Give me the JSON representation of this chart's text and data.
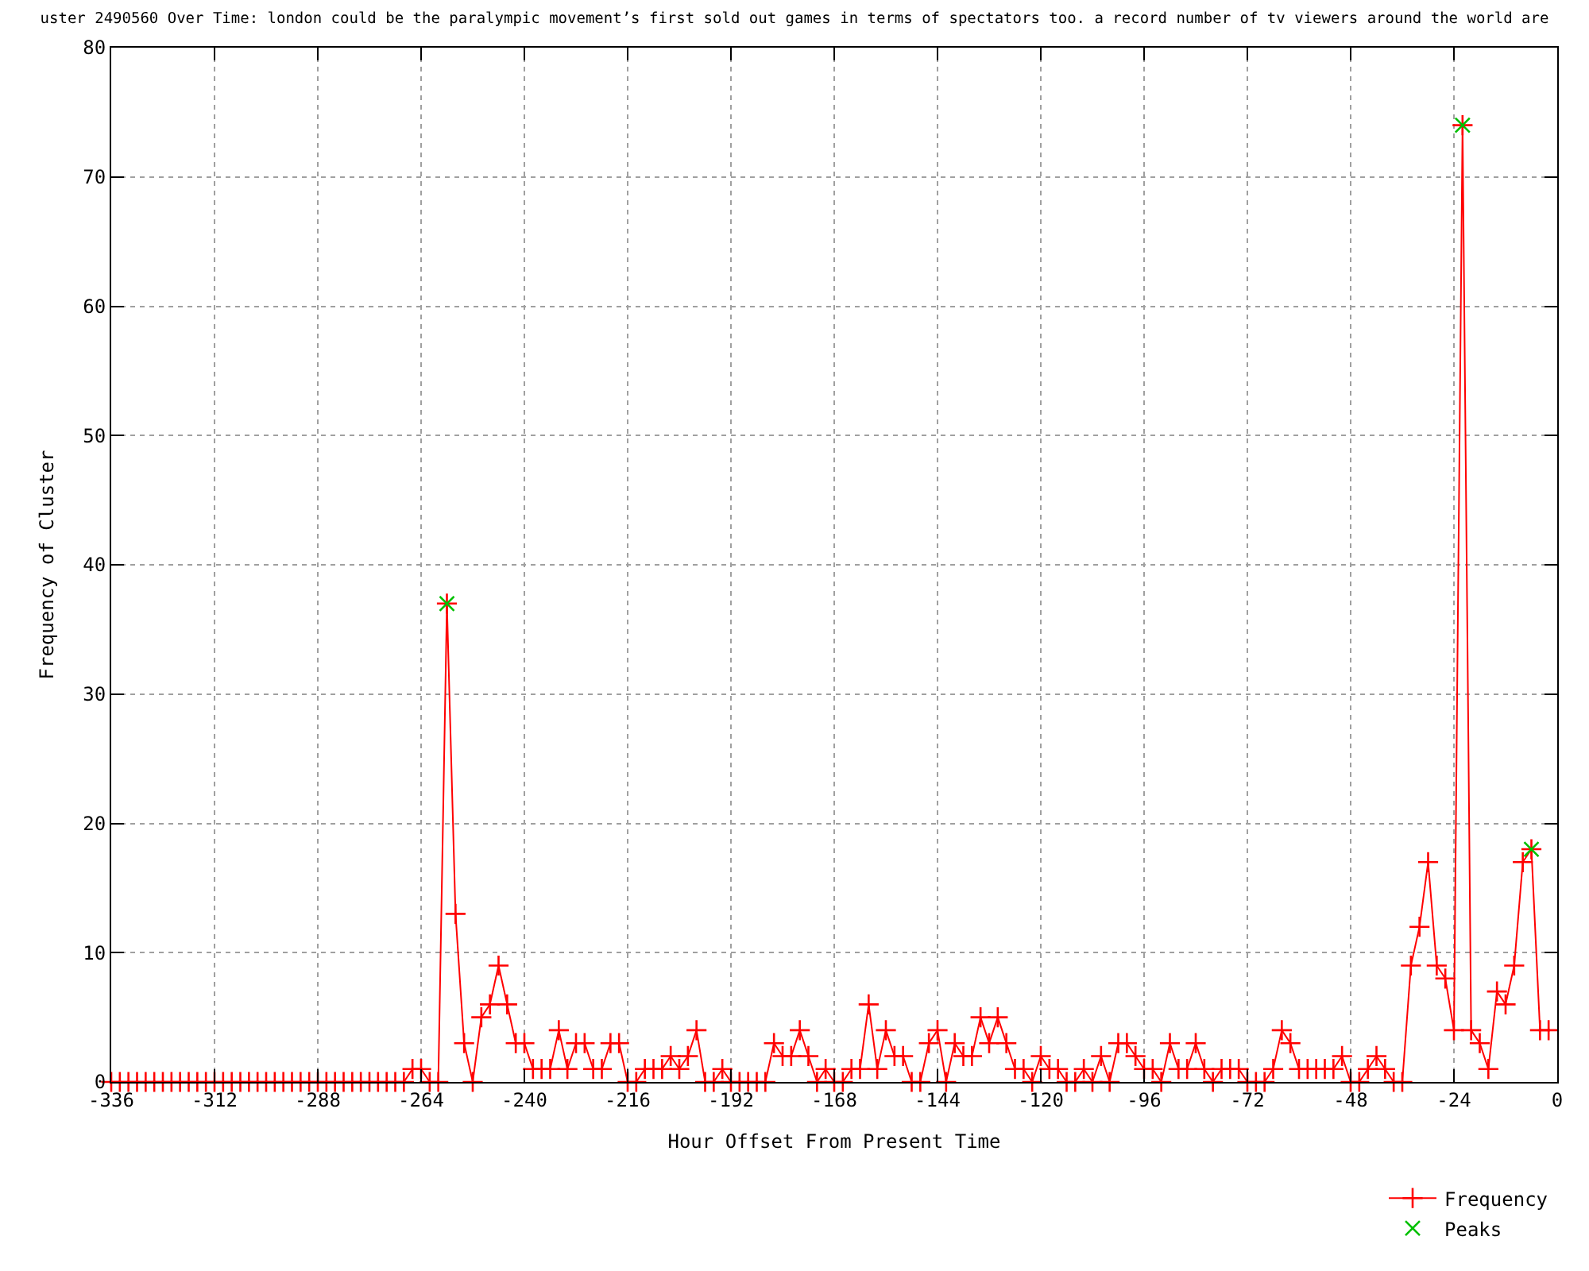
{
  "chart_data": {
    "type": "line",
    "title": "uster 2490560 Over Time: london could be the paralympic movement’s first sold out games in terms of spectators too. a record number of tv viewers around the world are",
    "xlabel": "Hour Offset From Present Time",
    "ylabel": "Frequency of Cluster",
    "xlim": [
      -336,
      0
    ],
    "xticks": [
      -336,
      -312,
      -288,
      -264,
      -240,
      -216,
      -192,
      -168,
      -144,
      -120,
      -96,
      -72,
      -48,
      -24,
      0
    ],
    "ylim": [
      0,
      80
    ],
    "yticks": [
      0,
      10,
      20,
      30,
      40,
      50,
      60,
      70,
      80
    ],
    "grid": true,
    "legend": "bottom right",
    "marker": "cross",
    "line_style": "solid",
    "series": [
      {
        "name": "Frequency",
        "color": "#ff0000",
        "x": [
          -336,
          -334,
          -332,
          -330,
          -328,
          -326,
          -324,
          -322,
          -320,
          -318,
          -316,
          -314,
          -312,
          -310,
          -308,
          -306,
          -304,
          -302,
          -300,
          -298,
          -296,
          -294,
          -292,
          -290,
          -288,
          -286,
          -284,
          -282,
          -280,
          -278,
          -276,
          -274,
          -272,
          -270,
          -268,
          -266,
          -264,
          -262,
          -260,
          -258,
          -256,
          -254,
          -252,
          -250,
          -248,
          -246,
          -244,
          -242,
          -240,
          -238,
          -236,
          -234,
          -232,
          -230,
          -228,
          -226,
          -224,
          -222,
          -220,
          -218,
          -216,
          -214,
          -212,
          -210,
          -208,
          -206,
          -204,
          -202,
          -200,
          -198,
          -196,
          -194,
          -192,
          -190,
          -188,
          -186,
          -184,
          -182,
          -180,
          -178,
          -176,
          -174,
          -172,
          -170,
          -168,
          -166,
          -164,
          -162,
          -160,
          -158,
          -156,
          -154,
          -152,
          -150,
          -148,
          -146,
          -144,
          -142,
          -140,
          -138,
          -136,
          -134,
          -132,
          -130,
          -128,
          -126,
          -124,
          -122,
          -120,
          -118,
          -116,
          -114,
          -112,
          -110,
          -108,
          -106,
          -104,
          -102,
          -100,
          -98,
          -96,
          -94,
          -92,
          -90,
          -88,
          -86,
          -84,
          -82,
          -80,
          -78,
          -76,
          -74,
          -72,
          -70,
          -68,
          -66,
          -64,
          -62,
          -60,
          -58,
          -56,
          -54,
          -52,
          -50,
          -48,
          -46,
          -44,
          -42,
          -40,
          -38,
          -36,
          -34,
          -32,
          -30,
          -28,
          -26,
          -24,
          -22,
          -20,
          -18,
          -16,
          -14,
          -12,
          -10,
          -8,
          -6,
          -4,
          -2
        ],
        "values": [
          0,
          0,
          0,
          0,
          0,
          0,
          0,
          0,
          0,
          0,
          0,
          0,
          0,
          0,
          0,
          0,
          0,
          0,
          0,
          0,
          0,
          0,
          0,
          0,
          0,
          0,
          0,
          0,
          0,
          0,
          0,
          0,
          0,
          0,
          0,
          1,
          1,
          0,
          0,
          37,
          13,
          3,
          0,
          5,
          6,
          9,
          6,
          3,
          3,
          1,
          1,
          1,
          4,
          1,
          3,
          3,
          1,
          1,
          3,
          3,
          0,
          0,
          1,
          1,
          1,
          2,
          1,
          2,
          4,
          0,
          0,
          1,
          0,
          0,
          0,
          0,
          0,
          3,
          2,
          2,
          4,
          2,
          0,
          1,
          0,
          0,
          1,
          1,
          6,
          1,
          4,
          2,
          2,
          0,
          0,
          3,
          4,
          0,
          3,
          2,
          2,
          5,
          3,
          5,
          3,
          1,
          1,
          0,
          2,
          1,
          1,
          0,
          0,
          1,
          0,
          2,
          0,
          3,
          3,
          2,
          1,
          1,
          0,
          3,
          1,
          1,
          3,
          1,
          0,
          1,
          1,
          1,
          0,
          0,
          0,
          1,
          4,
          3,
          1,
          1,
          1,
          1,
          1,
          2,
          0,
          0,
          1,
          2,
          1,
          0,
          0,
          9,
          12,
          17,
          9,
          8,
          4,
          74,
          4,
          3,
          1,
          7,
          6,
          9,
          17,
          18,
          4,
          4
        ]
      },
      {
        "name": "Peaks",
        "type": "scatter",
        "color": "#00c000",
        "x": [
          -258,
          -22,
          -6
        ],
        "values": [
          37,
          74,
          18
        ]
      }
    ]
  }
}
